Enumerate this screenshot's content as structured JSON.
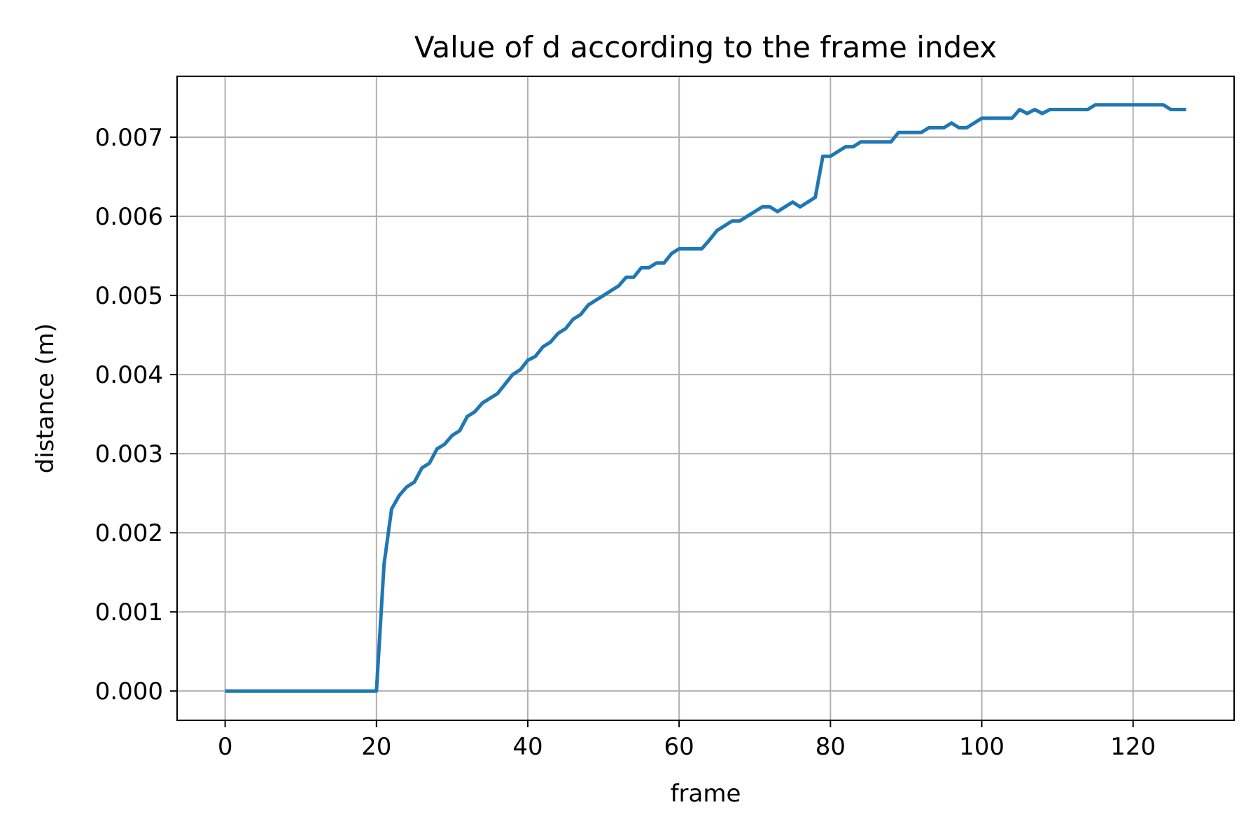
{
  "chart_data": {
    "type": "line",
    "title": "Value of d according to the frame index",
    "xlabel": "frame",
    "ylabel": "distance (m)",
    "xlim": [
      -6.35,
      133.35
    ],
    "ylim": [
      -0.00037,
      0.00777
    ],
    "xticks": [
      0,
      20,
      40,
      60,
      80,
      100,
      120
    ],
    "xtick_labels": [
      "0",
      "20",
      "40",
      "60",
      "80",
      "100",
      "120"
    ],
    "yticks": [
      0,
      0.001,
      0.002,
      0.003,
      0.004,
      0.005,
      0.006,
      0.007
    ],
    "ytick_labels": [
      "0.000",
      "0.001",
      "0.002",
      "0.003",
      "0.004",
      "0.005",
      "0.006",
      "0.007"
    ],
    "grid": true,
    "colors": {
      "line": "#1f77b4"
    },
    "series": [
      {
        "x": [
          0,
          1,
          2,
          3,
          4,
          5,
          6,
          7,
          8,
          9,
          10,
          11,
          12,
          13,
          14,
          15,
          16,
          17,
          18,
          19,
          20,
          21,
          22,
          23,
          24,
          25,
          26,
          27,
          28,
          29,
          30,
          31,
          32,
          33,
          34,
          35,
          36,
          37,
          38,
          39,
          40,
          41,
          42,
          43,
          44,
          45,
          46,
          47,
          48,
          49,
          50,
          51,
          52,
          53,
          54,
          55,
          56,
          57,
          58,
          59,
          60,
          61,
          62,
          63,
          64,
          65,
          66,
          67,
          68,
          69,
          70,
          71,
          72,
          73,
          74,
          75,
          76,
          77,
          78,
          79,
          80,
          81,
          82,
          83,
          84,
          85,
          86,
          87,
          88,
          89,
          90,
          91,
          92,
          93,
          94,
          95,
          96,
          97,
          98,
          99,
          100,
          101,
          102,
          103,
          104,
          105,
          106,
          107,
          108,
          109,
          110,
          111,
          112,
          113,
          114,
          115,
          116,
          117,
          118,
          119,
          120,
          121,
          122,
          123,
          124,
          125,
          126,
          127
        ],
        "values": [
          0,
          0,
          0,
          0,
          0,
          0,
          0,
          0,
          0,
          0,
          0,
          0,
          0,
          0,
          0,
          0,
          0,
          0,
          0,
          0,
          0,
          0.0016,
          0.0023,
          0.00247,
          0.00258,
          0.00264,
          0.00282,
          0.00288,
          0.00306,
          0.00312,
          0.00323,
          0.00329,
          0.00347,
          0.00353,
          0.00364,
          0.0037,
          0.00376,
          0.00388,
          0.004,
          0.00406,
          0.00418,
          0.00423,
          0.00435,
          0.00441,
          0.00452,
          0.00458,
          0.0047,
          0.00476,
          0.00488,
          0.00494,
          0.005,
          0.00506,
          0.00512,
          0.00523,
          0.00523,
          0.00535,
          0.00535,
          0.00541,
          0.00541,
          0.00553,
          0.00559,
          0.00559,
          0.00559,
          0.00559,
          0.0057,
          0.00582,
          0.00588,
          0.00594,
          0.00594,
          0.006,
          0.00606,
          0.00612,
          0.00612,
          0.00606,
          0.00612,
          0.00618,
          0.00612,
          0.00618,
          0.00624,
          0.00676,
          0.00676,
          0.00682,
          0.00688,
          0.00688,
          0.00694,
          0.00694,
          0.00694,
          0.00694,
          0.00694,
          0.00706,
          0.00706,
          0.00706,
          0.00706,
          0.00712,
          0.00712,
          0.00712,
          0.00718,
          0.00712,
          0.00712,
          0.00718,
          0.00724,
          0.00724,
          0.00724,
          0.00724,
          0.00724,
          0.00735,
          0.0073,
          0.00735,
          0.0073,
          0.00735,
          0.00735,
          0.00735,
          0.00735,
          0.00735,
          0.00735,
          0.00741,
          0.00741,
          0.00741,
          0.00741,
          0.00741,
          0.00741,
          0.00741,
          0.00741,
          0.00741,
          0.00741,
          0.00735,
          0.00735,
          0.00735
        ]
      }
    ]
  }
}
